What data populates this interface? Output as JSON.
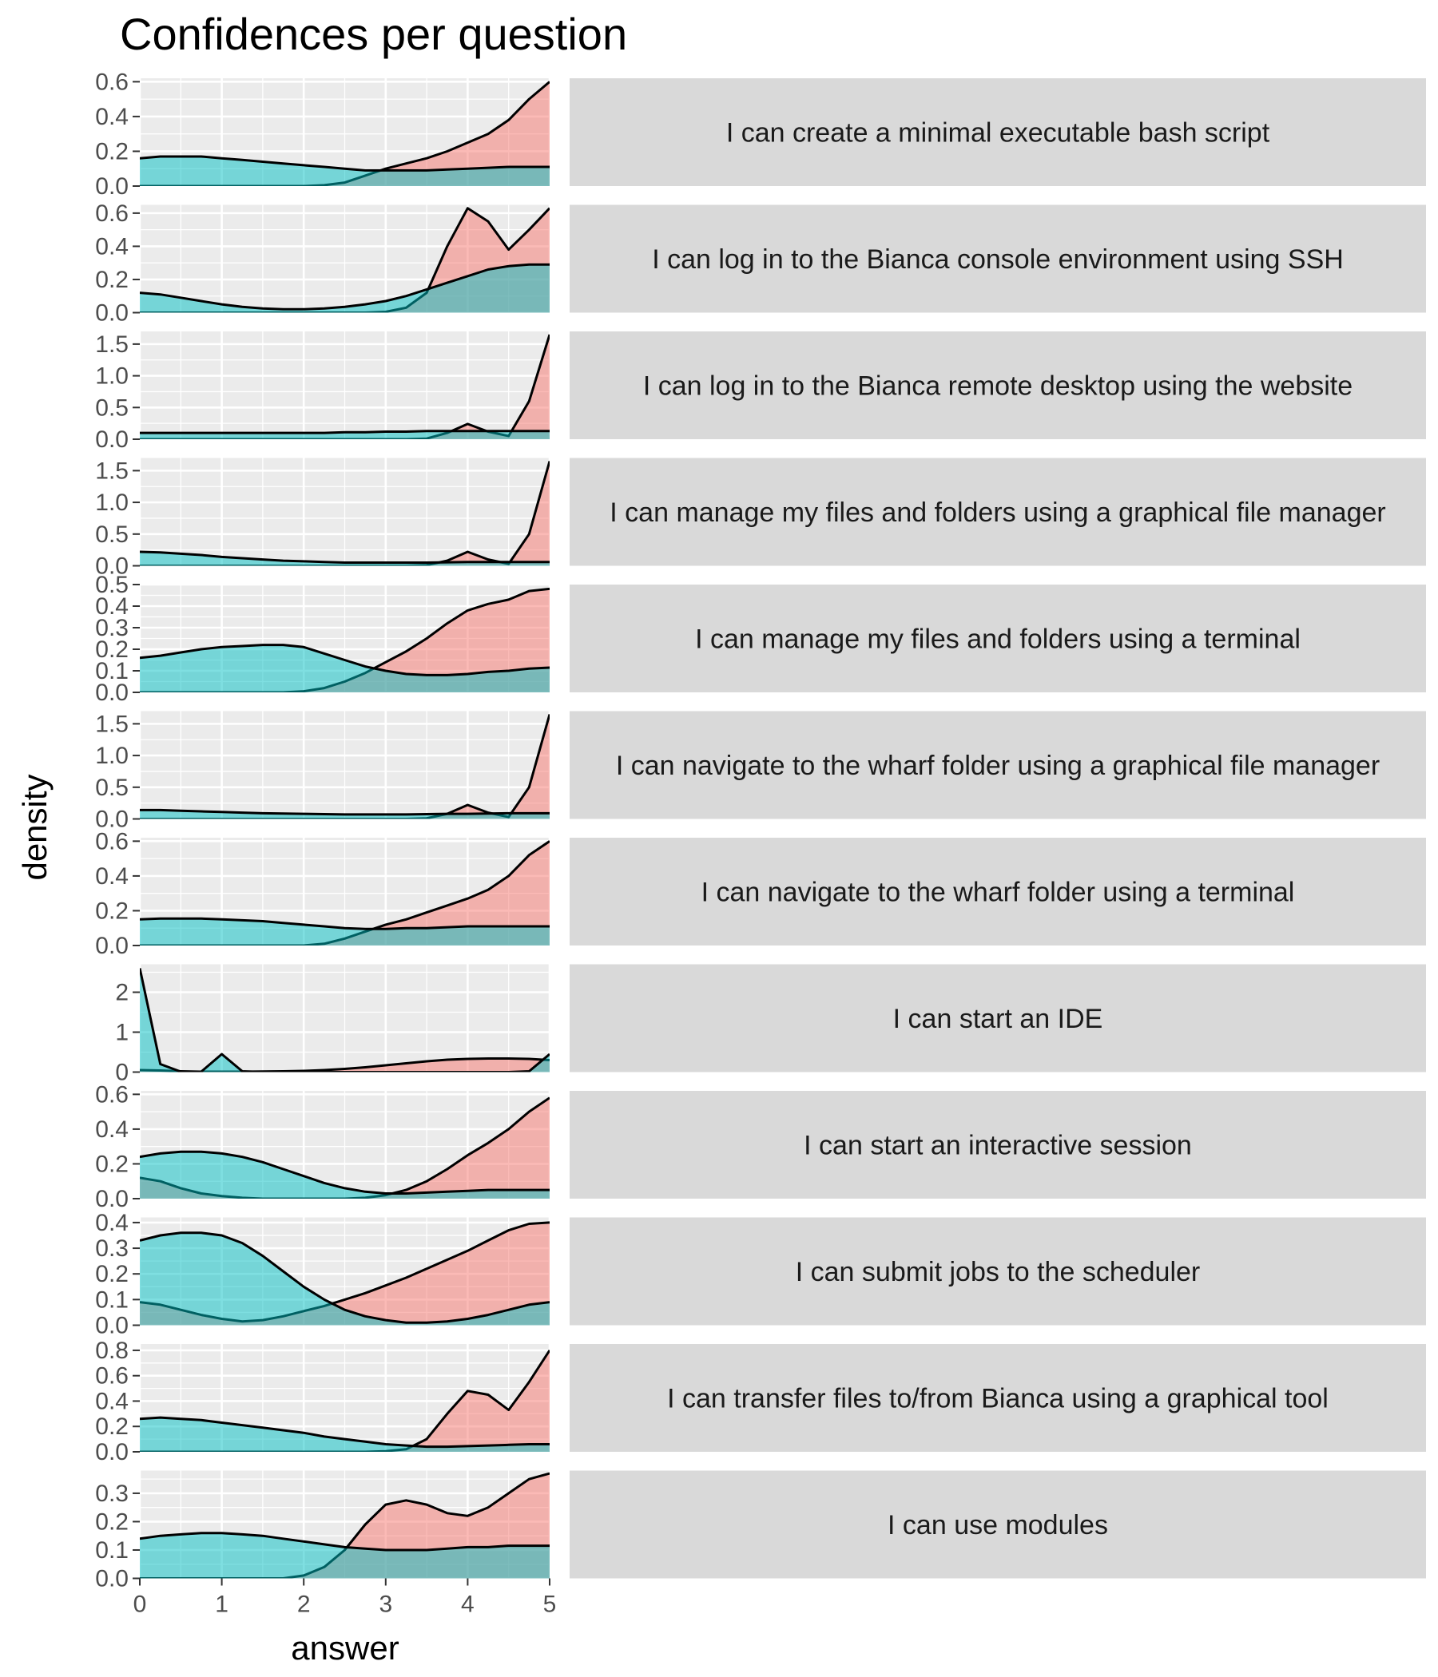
{
  "chart_data": {
    "type": "area",
    "subtype": "faceted density plot",
    "title": "Confidences per question",
    "xlabel": "answer",
    "ylabel": "density",
    "xlim": [
      0,
      5
    ],
    "x_ticks": [
      "0",
      "1",
      "2",
      "3",
      "4",
      "5"
    ],
    "grid": true,
    "legend": "none",
    "colors": {
      "red_group": "#f8766d",
      "teal_group": "#00bfc4",
      "panel_bg": "#ebebeb",
      "strip_bg": "#d9d9d9"
    },
    "x": [
      0,
      0.25,
      0.5,
      0.75,
      1,
      1.25,
      1.5,
      1.75,
      2,
      2.25,
      2.5,
      2.75,
      3,
      3.25,
      3.5,
      3.75,
      4,
      4.25,
      4.5,
      4.75,
      5
    ],
    "facets": [
      {
        "label": "I can create a minimal executable bash script",
        "ylim": [
          0,
          0.62
        ],
        "yticks": [
          "0.0",
          "0.2",
          "0.4",
          "0.6"
        ],
        "ytick_values": [
          0,
          0.2,
          0.4,
          0.6
        ],
        "series": [
          {
            "color": "red",
            "values": [
              0,
              0,
              0,
              0,
              0,
              0,
              0,
              0,
              0,
              0.005,
              0.02,
              0.06,
              0.1,
              0.13,
              0.16,
              0.2,
              0.25,
              0.3,
              0.38,
              0.5,
              0.6
            ]
          },
          {
            "color": "teal",
            "values": [
              0.16,
              0.17,
              0.17,
              0.17,
              0.16,
              0.15,
              0.14,
              0.13,
              0.12,
              0.11,
              0.1,
              0.09,
              0.09,
              0.09,
              0.09,
              0.095,
              0.1,
              0.105,
              0.11,
              0.11,
              0.11
            ]
          }
        ]
      },
      {
        "label": "I can log in to the Bianca console environment using SSH",
        "ylim": [
          0,
          0.65
        ],
        "yticks": [
          "0.0",
          "0.2",
          "0.4",
          "0.6"
        ],
        "ytick_values": [
          0,
          0.2,
          0.4,
          0.6
        ],
        "series": [
          {
            "color": "red",
            "values": [
              0,
              0,
              0,
              0,
              0,
              0,
              0,
              0,
              0,
              0,
              0,
              0,
              0.005,
              0.03,
              0.12,
              0.4,
              0.63,
              0.55,
              0.38,
              0.5,
              0.63
            ]
          },
          {
            "color": "teal",
            "values": [
              0.12,
              0.11,
              0.09,
              0.07,
              0.05,
              0.035,
              0.025,
              0.02,
              0.02,
              0.025,
              0.035,
              0.05,
              0.07,
              0.1,
              0.14,
              0.18,
              0.22,
              0.26,
              0.28,
              0.29,
              0.29
            ]
          }
        ]
      },
      {
        "label": "I can log in to the Bianca remote desktop using the website",
        "ylim": [
          0,
          1.7
        ],
        "yticks": [
          "0.0",
          "0.5",
          "1.0",
          "1.5"
        ],
        "ytick_values": [
          0,
          0.5,
          1.0,
          1.5
        ],
        "series": [
          {
            "color": "red",
            "values": [
              0,
              0,
              0,
              0,
              0,
              0,
              0,
              0,
              0,
              0,
              0,
              0,
              0,
              0,
              0.01,
              0.1,
              0.24,
              0.12,
              0.05,
              0.6,
              1.65
            ]
          },
          {
            "color": "teal",
            "values": [
              0.1,
              0.1,
              0.1,
              0.1,
              0.1,
              0.1,
              0.1,
              0.1,
              0.1,
              0.1,
              0.11,
              0.11,
              0.12,
              0.12,
              0.13,
              0.13,
              0.13,
              0.13,
              0.13,
              0.13,
              0.13
            ]
          }
        ]
      },
      {
        "label": "I can manage my files and folders using a graphical file manager",
        "ylim": [
          0,
          1.7
        ],
        "yticks": [
          "0.0",
          "0.5",
          "1.0",
          "1.5"
        ],
        "ytick_values": [
          0,
          0.5,
          1.0,
          1.5
        ],
        "series": [
          {
            "color": "red",
            "values": [
              0,
              0,
              0,
              0,
              0,
              0,
              0,
              0,
              0,
              0,
              0,
              0,
              0,
              0,
              0.01,
              0.08,
              0.22,
              0.1,
              0.03,
              0.5,
              1.65
            ]
          },
          {
            "color": "teal",
            "values": [
              0.22,
              0.21,
              0.19,
              0.17,
              0.14,
              0.12,
              0.1,
              0.08,
              0.07,
              0.06,
              0.05,
              0.05,
              0.05,
              0.05,
              0.05,
              0.055,
              0.06,
              0.06,
              0.06,
              0.06,
              0.06
            ]
          }
        ]
      },
      {
        "label": "I can manage my files and folders using a terminal",
        "ylim": [
          0,
          0.5
        ],
        "yticks": [
          "0.0",
          "0.1",
          "0.2",
          "0.3",
          "0.4",
          "0.5"
        ],
        "ytick_values": [
          0,
          0.1,
          0.2,
          0.3,
          0.4,
          0.5
        ],
        "series": [
          {
            "color": "red",
            "values": [
              0,
              0,
              0,
              0,
              0,
              0,
              0,
              0,
              0.005,
              0.02,
              0.05,
              0.09,
              0.14,
              0.19,
              0.25,
              0.32,
              0.38,
              0.41,
              0.43,
              0.47,
              0.48
            ]
          },
          {
            "color": "teal",
            "values": [
              0.16,
              0.17,
              0.185,
              0.2,
              0.21,
              0.215,
              0.22,
              0.22,
              0.21,
              0.18,
              0.15,
              0.12,
              0.1,
              0.085,
              0.08,
              0.08,
              0.085,
              0.095,
              0.1,
              0.11,
              0.115
            ]
          }
        ]
      },
      {
        "label": "I can navigate to the wharf folder using a graphical file manager",
        "ylim": [
          0,
          1.7
        ],
        "yticks": [
          "0.0",
          "0.5",
          "1.0",
          "1.5"
        ],
        "ytick_values": [
          0,
          0.5,
          1.0,
          1.5
        ],
        "series": [
          {
            "color": "red",
            "values": [
              0,
              0,
              0,
              0,
              0,
              0,
              0,
              0,
              0,
              0,
              0,
              0,
              0,
              0,
              0.01,
              0.08,
              0.22,
              0.1,
              0.03,
              0.5,
              1.65
            ]
          },
          {
            "color": "teal",
            "values": [
              0.14,
              0.14,
              0.13,
              0.12,
              0.11,
              0.1,
              0.09,
              0.085,
              0.08,
              0.075,
              0.07,
              0.07,
              0.07,
              0.07,
              0.075,
              0.08,
              0.08,
              0.085,
              0.09,
              0.09,
              0.09
            ]
          }
        ]
      },
      {
        "label": "I can navigate to the wharf folder using a terminal",
        "ylim": [
          0,
          0.62
        ],
        "yticks": [
          "0.0",
          "0.2",
          "0.4",
          "0.6"
        ],
        "ytick_values": [
          0,
          0.2,
          0.4,
          0.6
        ],
        "series": [
          {
            "color": "red",
            "values": [
              0,
              0,
              0,
              0,
              0,
              0,
              0,
              0,
              0,
              0.01,
              0.04,
              0.08,
              0.12,
              0.15,
              0.19,
              0.23,
              0.27,
              0.32,
              0.4,
              0.52,
              0.6
            ]
          },
          {
            "color": "teal",
            "values": [
              0.15,
              0.155,
              0.155,
              0.155,
              0.15,
              0.145,
              0.14,
              0.13,
              0.12,
              0.11,
              0.1,
              0.095,
              0.095,
              0.1,
              0.1,
              0.105,
              0.11,
              0.11,
              0.11,
              0.11,
              0.11
            ]
          }
        ]
      },
      {
        "label": "I can start an IDE",
        "ylim": [
          0,
          2.7
        ],
        "yticks": [
          "0",
          "1",
          "2"
        ],
        "ytick_values": [
          0,
          1,
          2
        ],
        "series": [
          {
            "color": "red",
            "values": [
              0.05,
              0.04,
              0.02,
              0.01,
              0.01,
              0.01,
              0.015,
              0.02,
              0.03,
              0.05,
              0.08,
              0.12,
              0.17,
              0.22,
              0.27,
              0.31,
              0.33,
              0.34,
              0.34,
              0.33,
              0.3
            ]
          },
          {
            "color": "teal",
            "values": [
              2.6,
              0.2,
              0.01,
              0.01,
              0.45,
              0.02,
              0,
              0,
              0,
              0,
              0,
              0,
              0,
              0,
              0,
              0,
              0,
              0,
              0,
              0.02,
              0.45
            ]
          }
        ]
      },
      {
        "label": "I can start an interactive session",
        "ylim": [
          0,
          0.62
        ],
        "yticks": [
          "0.0",
          "0.2",
          "0.4",
          "0.6"
        ],
        "ytick_values": [
          0,
          0.2,
          0.4,
          0.6
        ],
        "series": [
          {
            "color": "red",
            "values": [
              0.12,
              0.1,
              0.06,
              0.03,
              0.015,
              0.005,
              0,
              0,
              0,
              0,
              0,
              0.005,
              0.02,
              0.05,
              0.1,
              0.17,
              0.25,
              0.32,
              0.4,
              0.5,
              0.58
            ]
          },
          {
            "color": "teal",
            "values": [
              0.24,
              0.26,
              0.27,
              0.27,
              0.26,
              0.24,
              0.21,
              0.17,
              0.13,
              0.09,
              0.06,
              0.04,
              0.03,
              0.03,
              0.035,
              0.04,
              0.045,
              0.05,
              0.05,
              0.05,
              0.05
            ]
          }
        ]
      },
      {
        "label": "I can submit jobs to the scheduler",
        "ylim": [
          0,
          0.42
        ],
        "yticks": [
          "0.0",
          "0.1",
          "0.2",
          "0.3",
          "0.4"
        ],
        "ytick_values": [
          0,
          0.1,
          0.2,
          0.3,
          0.4
        ],
        "series": [
          {
            "color": "red",
            "values": [
              0.09,
              0.08,
              0.06,
              0.04,
              0.025,
              0.015,
              0.02,
              0.035,
              0.055,
              0.075,
              0.1,
              0.125,
              0.155,
              0.185,
              0.22,
              0.255,
              0.29,
              0.33,
              0.37,
              0.395,
              0.4
            ]
          },
          {
            "color": "teal",
            "values": [
              0.33,
              0.35,
              0.36,
              0.36,
              0.35,
              0.32,
              0.27,
              0.21,
              0.15,
              0.1,
              0.06,
              0.035,
              0.02,
              0.01,
              0.01,
              0.015,
              0.025,
              0.04,
              0.06,
              0.08,
              0.09
            ]
          }
        ]
      },
      {
        "label": "I can transfer files to/from Bianca using a graphical tool",
        "ylim": [
          0,
          0.85
        ],
        "yticks": [
          "0.0",
          "0.2",
          "0.4",
          "0.6",
          "0.8"
        ],
        "ytick_values": [
          0,
          0.2,
          0.4,
          0.6,
          0.8
        ],
        "series": [
          {
            "color": "red",
            "values": [
              0,
              0,
              0,
              0,
              0,
              0,
              0,
              0,
              0,
              0,
              0,
              0,
              0.005,
              0.02,
              0.1,
              0.3,
              0.48,
              0.45,
              0.33,
              0.55,
              0.8
            ]
          },
          {
            "color": "teal",
            "values": [
              0.26,
              0.27,
              0.26,
              0.25,
              0.23,
              0.21,
              0.19,
              0.17,
              0.15,
              0.12,
              0.1,
              0.08,
              0.06,
              0.05,
              0.04,
              0.04,
              0.045,
              0.05,
              0.055,
              0.06,
              0.06
            ]
          }
        ]
      },
      {
        "label": "I can use modules",
        "ylim": [
          0,
          0.38
        ],
        "yticks": [
          "0.0",
          "0.1",
          "0.2",
          "0.3"
        ],
        "ytick_values": [
          0,
          0.1,
          0.2,
          0.3
        ],
        "series": [
          {
            "color": "red",
            "values": [
              0,
              0,
              0,
              0,
              0,
              0,
              0,
              0,
              0.01,
              0.04,
              0.1,
              0.19,
              0.26,
              0.275,
              0.26,
              0.23,
              0.22,
              0.25,
              0.3,
              0.35,
              0.37
            ]
          },
          {
            "color": "teal",
            "values": [
              0.14,
              0.15,
              0.155,
              0.16,
              0.16,
              0.155,
              0.15,
              0.14,
              0.13,
              0.12,
              0.11,
              0.105,
              0.1,
              0.1,
              0.1,
              0.105,
              0.11,
              0.11,
              0.115,
              0.115,
              0.115
            ]
          }
        ]
      }
    ]
  }
}
